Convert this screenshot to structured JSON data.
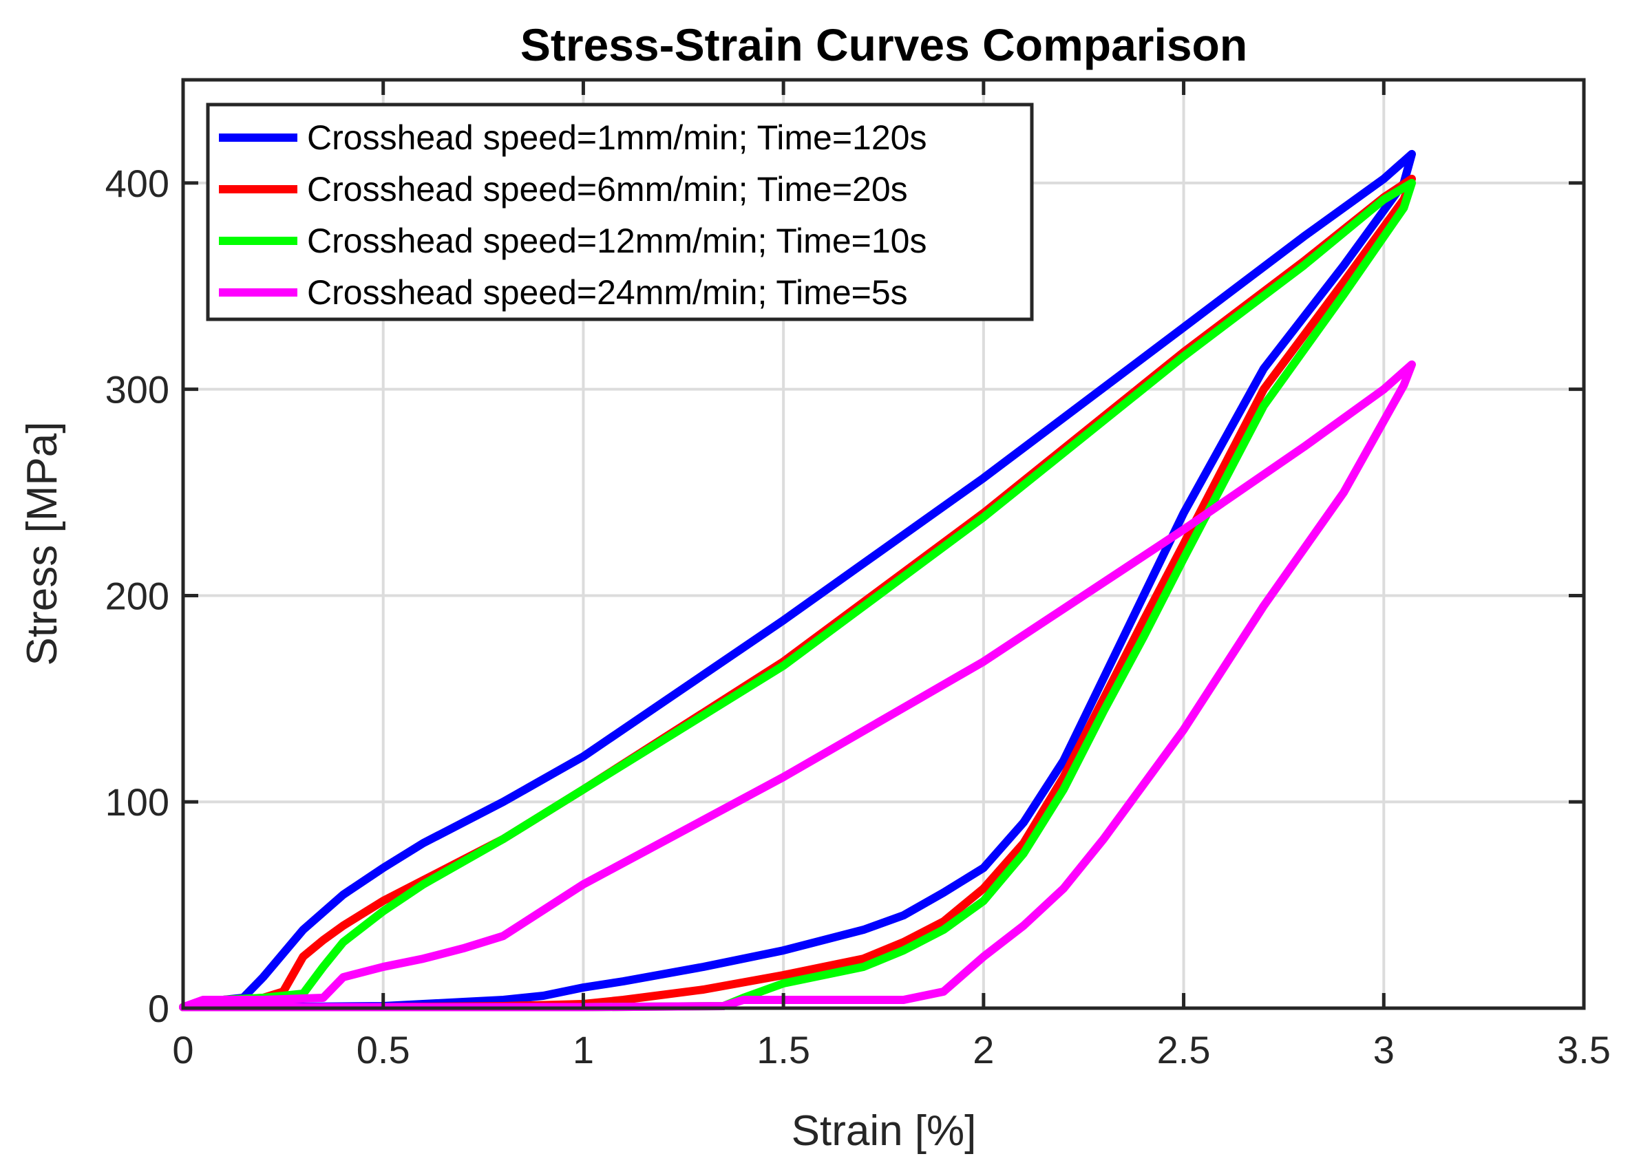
{
  "chart_data": {
    "type": "line",
    "title": "Stress-Strain Curves Comparison",
    "xlabel": "Strain [%]",
    "ylabel": "Stress [MPa]",
    "xlim": [
      0,
      3.5
    ],
    "ylim": [
      0,
      450
    ],
    "xticks": [
      0,
      0.5,
      1,
      1.5,
      2,
      2.5,
      3,
      3.5
    ],
    "xtick_labels": [
      "0",
      "0.5",
      "1",
      "1.5",
      "2",
      "2.5",
      "3",
      "3.5"
    ],
    "yticks": [
      0,
      100,
      200,
      300,
      400
    ],
    "ytick_labels": [
      "0",
      "100",
      "200",
      "300",
      "400"
    ],
    "grid": true,
    "legend_position": "top-left",
    "series": [
      {
        "name": "Crosshead speed=1mm/min; Time=120s",
        "color": "#0000ff",
        "points": [
          [
            0.0,
            0.5
          ],
          [
            0.05,
            3
          ],
          [
            0.1,
            4
          ],
          [
            0.15,
            5
          ],
          [
            0.2,
            15
          ],
          [
            0.3,
            38
          ],
          [
            0.4,
            55
          ],
          [
            0.5,
            68
          ],
          [
            0.6,
            80
          ],
          [
            0.7,
            90
          ],
          [
            0.8,
            100
          ],
          [
            1.0,
            122
          ],
          [
            1.5,
            188
          ],
          [
            2.0,
            257
          ],
          [
            2.5,
            330
          ],
          [
            2.8,
            374
          ],
          [
            3.0,
            402
          ],
          [
            3.07,
            414
          ],
          [
            3.05,
            400
          ],
          [
            2.9,
            360
          ],
          [
            2.7,
            310
          ],
          [
            2.5,
            240
          ],
          [
            2.4,
            200
          ],
          [
            2.3,
            160
          ],
          [
            2.2,
            120
          ],
          [
            2.1,
            90
          ],
          [
            2.0,
            68
          ],
          [
            1.9,
            56
          ],
          [
            1.8,
            45
          ],
          [
            1.7,
            38
          ],
          [
            1.5,
            28
          ],
          [
            1.3,
            20
          ],
          [
            1.1,
            13
          ],
          [
            1.0,
            10
          ],
          [
            0.9,
            6
          ],
          [
            0.8,
            4
          ],
          [
            0.7,
            3
          ],
          [
            0.5,
            1
          ],
          [
            0.2,
            0.5
          ],
          [
            0.0,
            0.5
          ]
        ]
      },
      {
        "name": "Crosshead speed=6mm/min; Time=20s",
        "color": "#ff0000",
        "points": [
          [
            0.0,
            0.5
          ],
          [
            0.1,
            4
          ],
          [
            0.2,
            5
          ],
          [
            0.25,
            8
          ],
          [
            0.3,
            25
          ],
          [
            0.35,
            33
          ],
          [
            0.4,
            40
          ],
          [
            0.5,
            52
          ],
          [
            0.6,
            62
          ],
          [
            0.8,
            82
          ],
          [
            1.0,
            106
          ],
          [
            1.5,
            168
          ],
          [
            2.0,
            240
          ],
          [
            2.5,
            318
          ],
          [
            2.8,
            362
          ],
          [
            3.0,
            393
          ],
          [
            3.07,
            402
          ],
          [
            3.05,
            392
          ],
          [
            2.9,
            352
          ],
          [
            2.7,
            300
          ],
          [
            2.5,
            225
          ],
          [
            2.4,
            188
          ],
          [
            2.3,
            150
          ],
          [
            2.2,
            112
          ],
          [
            2.1,
            80
          ],
          [
            2.0,
            58
          ],
          [
            1.9,
            42
          ],
          [
            1.8,
            32
          ],
          [
            1.7,
            24
          ],
          [
            1.5,
            16
          ],
          [
            1.3,
            9
          ],
          [
            1.1,
            4
          ],
          [
            1.0,
            2
          ],
          [
            0.8,
            1
          ],
          [
            0.5,
            0.5
          ],
          [
            0.0,
            0.5
          ]
        ]
      },
      {
        "name": "Crosshead speed=12mm/min; Time=10s",
        "color": "#00ff00",
        "points": [
          [
            0.0,
            0.5
          ],
          [
            0.1,
            4
          ],
          [
            0.2,
            5
          ],
          [
            0.3,
            7
          ],
          [
            0.35,
            20
          ],
          [
            0.4,
            32
          ],
          [
            0.5,
            47
          ],
          [
            0.6,
            60
          ],
          [
            0.8,
            82
          ],
          [
            1.0,
            106
          ],
          [
            1.5,
            166
          ],
          [
            2.0,
            238
          ],
          [
            2.5,
            316
          ],
          [
            2.8,
            360
          ],
          [
            3.0,
            392
          ],
          [
            3.07,
            400
          ],
          [
            3.05,
            388
          ],
          [
            2.9,
            346
          ],
          [
            2.7,
            292
          ],
          [
            2.5,
            218
          ],
          [
            2.4,
            180
          ],
          [
            2.3,
            144
          ],
          [
            2.2,
            106
          ],
          [
            2.1,
            75
          ],
          [
            2.0,
            52
          ],
          [
            1.9,
            38
          ],
          [
            1.8,
            28
          ],
          [
            1.7,
            20
          ],
          [
            1.5,
            12
          ],
          [
            1.4,
            5
          ],
          [
            1.35,
            1
          ],
          [
            1.0,
            0.5
          ],
          [
            0.5,
            0.5
          ],
          [
            0.0,
            0.5
          ]
        ]
      },
      {
        "name": "Crosshead speed=24mm/min; Time=5s",
        "color": "#ff00ff",
        "points": [
          [
            0.0,
            0.5
          ],
          [
            0.05,
            4
          ],
          [
            0.2,
            4
          ],
          [
            0.35,
            5
          ],
          [
            0.4,
            15
          ],
          [
            0.5,
            20
          ],
          [
            0.6,
            24
          ],
          [
            0.7,
            29
          ],
          [
            0.8,
            35
          ],
          [
            1.0,
            60
          ],
          [
            1.5,
            112
          ],
          [
            2.0,
            168
          ],
          [
            2.5,
            232
          ],
          [
            2.8,
            272
          ],
          [
            3.0,
            300
          ],
          [
            3.07,
            312
          ],
          [
            3.05,
            302
          ],
          [
            2.9,
            250
          ],
          [
            2.7,
            195
          ],
          [
            2.5,
            135
          ],
          [
            2.3,
            82
          ],
          [
            2.2,
            58
          ],
          [
            2.1,
            40
          ],
          [
            2.0,
            25
          ],
          [
            1.9,
            8
          ],
          [
            1.8,
            4
          ],
          [
            1.6,
            4
          ],
          [
            1.4,
            4
          ],
          [
            1.35,
            1
          ],
          [
            1.0,
            0.5
          ],
          [
            0.5,
            0.5
          ],
          [
            0.0,
            0.5
          ]
        ]
      }
    ]
  }
}
